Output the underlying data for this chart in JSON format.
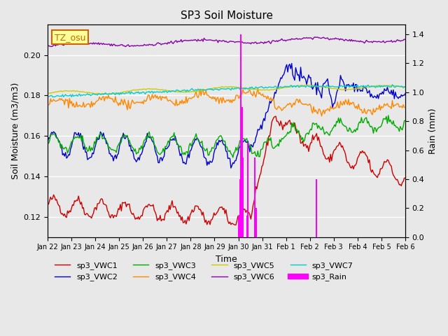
{
  "title": "SP3 Soil Moisture",
  "xlabel": "Time",
  "ylabel_left": "Soil Moisture (m3/m3)",
  "ylabel_right": "Rain (mm)",
  "ylim_left": [
    0.11,
    0.215
  ],
  "ylim_right": [
    0.0,
    1.4667
  ],
  "background_color": "#e8e8e8",
  "plot_bg_color": "#e8e8e8",
  "grid_color": "white",
  "annotation_text": "TZ_osu",
  "annotation_color": "#cc6600",
  "annotation_bg": "#ffff99",
  "annotation_border": "#cc6600",
  "series_colors": {
    "VWC1": "#cc0000",
    "VWC2": "#0000cc",
    "VWC3": "#00aa00",
    "VWC4": "#ff8800",
    "VWC5": "#cccc00",
    "VWC6": "#8800aa",
    "VWC7": "#00cccc",
    "Rain": "#ff00ff"
  },
  "legend_labels": [
    "sp3_VWC1",
    "sp3_VWC2",
    "sp3_VWC3",
    "sp3_VWC4",
    "sp3_VWC5",
    "sp3_VWC6",
    "sp3_VWC7",
    "sp3_Rain"
  ],
  "xtick_labels": [
    "Jan 22",
    "Jan 23",
    "Jan 24",
    "Jan 25",
    "Jan 26",
    "Jan 27",
    "Jan 28",
    "Jan 29",
    "Jan 30",
    "Jan 31",
    "Feb 1",
    "Feb 2",
    "Feb 3",
    "Feb 4",
    "Feb 5",
    "Feb 6"
  ],
  "n_days": 15,
  "pts_per_day": 24,
  "rain_events": {
    "indices": [
      192,
      193,
      194,
      195,
      196,
      200,
      201,
      208,
      209,
      270
    ],
    "values": [
      0.15,
      0.4,
      1.4,
      0.9,
      0.55,
      0.15,
      0.65,
      0.55,
      0.2,
      0.4
    ]
  }
}
